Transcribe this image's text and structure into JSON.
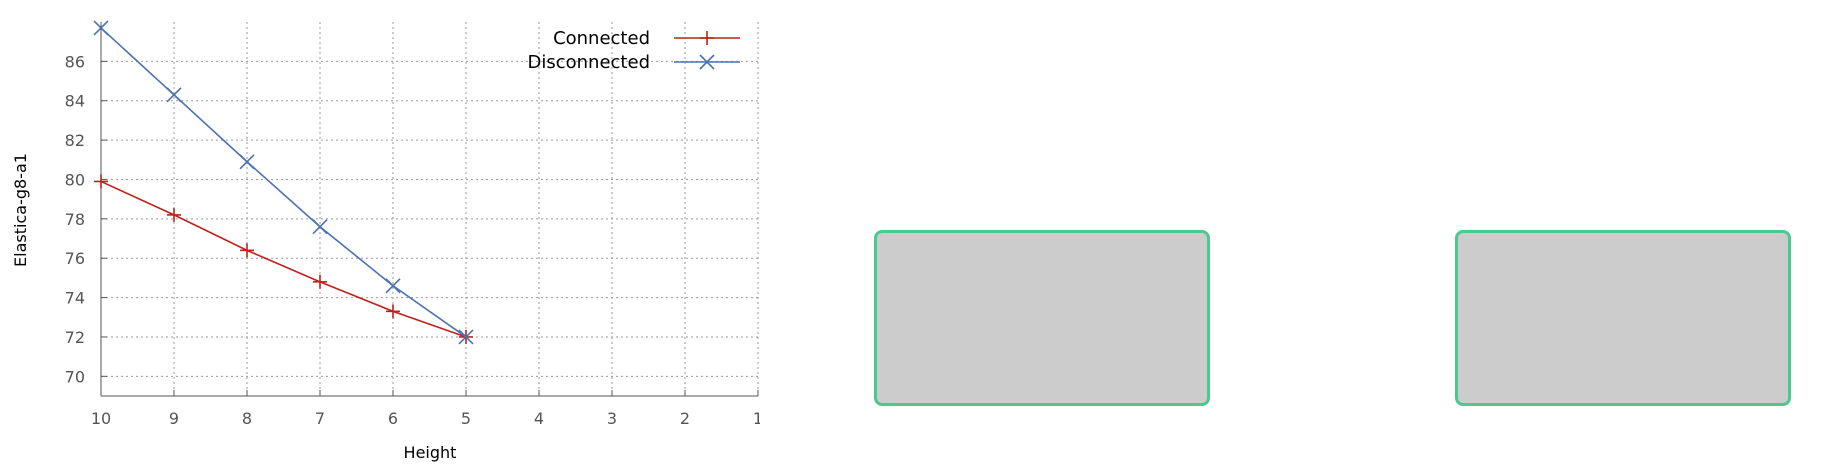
{
  "chart_data": {
    "type": "line",
    "xlabel": "Height",
    "ylabel": "Elastica-g8-a1",
    "x_reversed": true,
    "xlim": [
      10,
      1
    ],
    "ylim": [
      69,
      88
    ],
    "x_ticks": [
      "10",
      "9",
      "8",
      "7",
      "6",
      "5",
      "4",
      "3",
      "2",
      "1"
    ],
    "y_ticks": [
      "70",
      "72",
      "74",
      "76",
      "78",
      "80",
      "82",
      "84",
      "86"
    ],
    "grid": true,
    "legend_position": "top-right",
    "series": [
      {
        "name": "Connected",
        "color": "#c0201a",
        "marker": "plus",
        "x": [
          10,
          9,
          8,
          7,
          6,
          5
        ],
        "y": [
          79.9,
          78.2,
          76.4,
          74.8,
          73.3,
          72.0
        ]
      },
      {
        "name": "Disconnected",
        "color": "#4a72b2",
        "marker": "cross",
        "x": [
          10,
          9,
          8,
          7,
          6,
          5
        ],
        "y": [
          87.7,
          84.3,
          80.9,
          77.6,
          74.6,
          72.0
        ]
      }
    ]
  },
  "panels": {
    "border_color": "#4cc98f",
    "fill_color": "#cccccc"
  }
}
